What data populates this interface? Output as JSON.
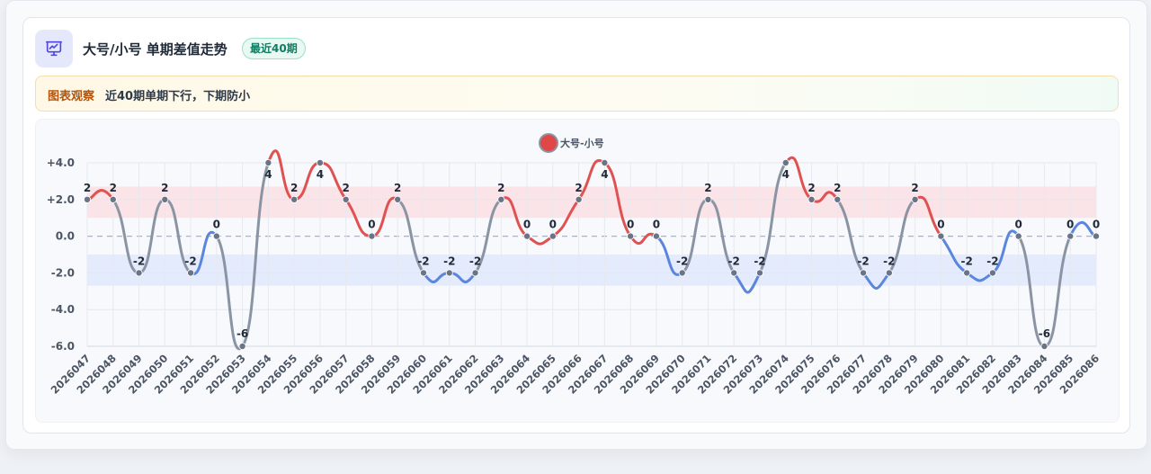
{
  "header": {
    "title": "大号/小号 单期差值走势",
    "badge": "最近40期",
    "icon": "presentation-chart-icon"
  },
  "note": {
    "label": "图表观察",
    "text": "近40期单期下行，下期防小"
  },
  "colors": {
    "up": "#e05252",
    "down": "#5b86db",
    "flat": "#8a94a3",
    "marker": "#6b7487",
    "band_high": "#fbe1e4",
    "band_low": "#e1e9fb",
    "accent": "#4f46e5"
  },
  "chart_data": {
    "type": "line",
    "legend": "大号-小号",
    "legend_position": "top-center",
    "categories": [
      "2026047",
      "2026048",
      "2026049",
      "2026050",
      "2026051",
      "2026052",
      "2026053",
      "2026054",
      "2026055",
      "2026056",
      "2026057",
      "2026058",
      "2026059",
      "2026060",
      "2026061",
      "2026062",
      "2026063",
      "2026064",
      "2026065",
      "2026066",
      "2026067",
      "2026068",
      "2026069",
      "2026070",
      "2026071",
      "2026072",
      "2026073",
      "2026074",
      "2026075",
      "2026076",
      "2026077",
      "2026078",
      "2026079",
      "2026080",
      "2026081",
      "2026082",
      "2026083",
      "2026084",
      "2026085",
      "2026086"
    ],
    "series": [
      {
        "name": "大号-小号",
        "values": [
          2,
          2,
          -2,
          2,
          -2,
          0,
          -6,
          4,
          2,
          4,
          2,
          0,
          2,
          -2,
          -2,
          -2,
          2,
          0,
          0,
          2,
          4,
          0,
          0,
          -2,
          2,
          -2,
          -2,
          4,
          2,
          2,
          -2,
          -2,
          2,
          0,
          -2,
          -2,
          0,
          -6,
          0,
          0
        ]
      }
    ],
    "y_ticks": [
      "+4.0",
      "+2.0",
      "0.0",
      "-2.0",
      "-4.0",
      "-6.0"
    ],
    "ylim": [
      -6,
      4
    ],
    "bands": [
      {
        "from": 1,
        "to": 2.7
      },
      {
        "from": -2.7,
        "to": -1
      }
    ],
    "grid": true
  }
}
